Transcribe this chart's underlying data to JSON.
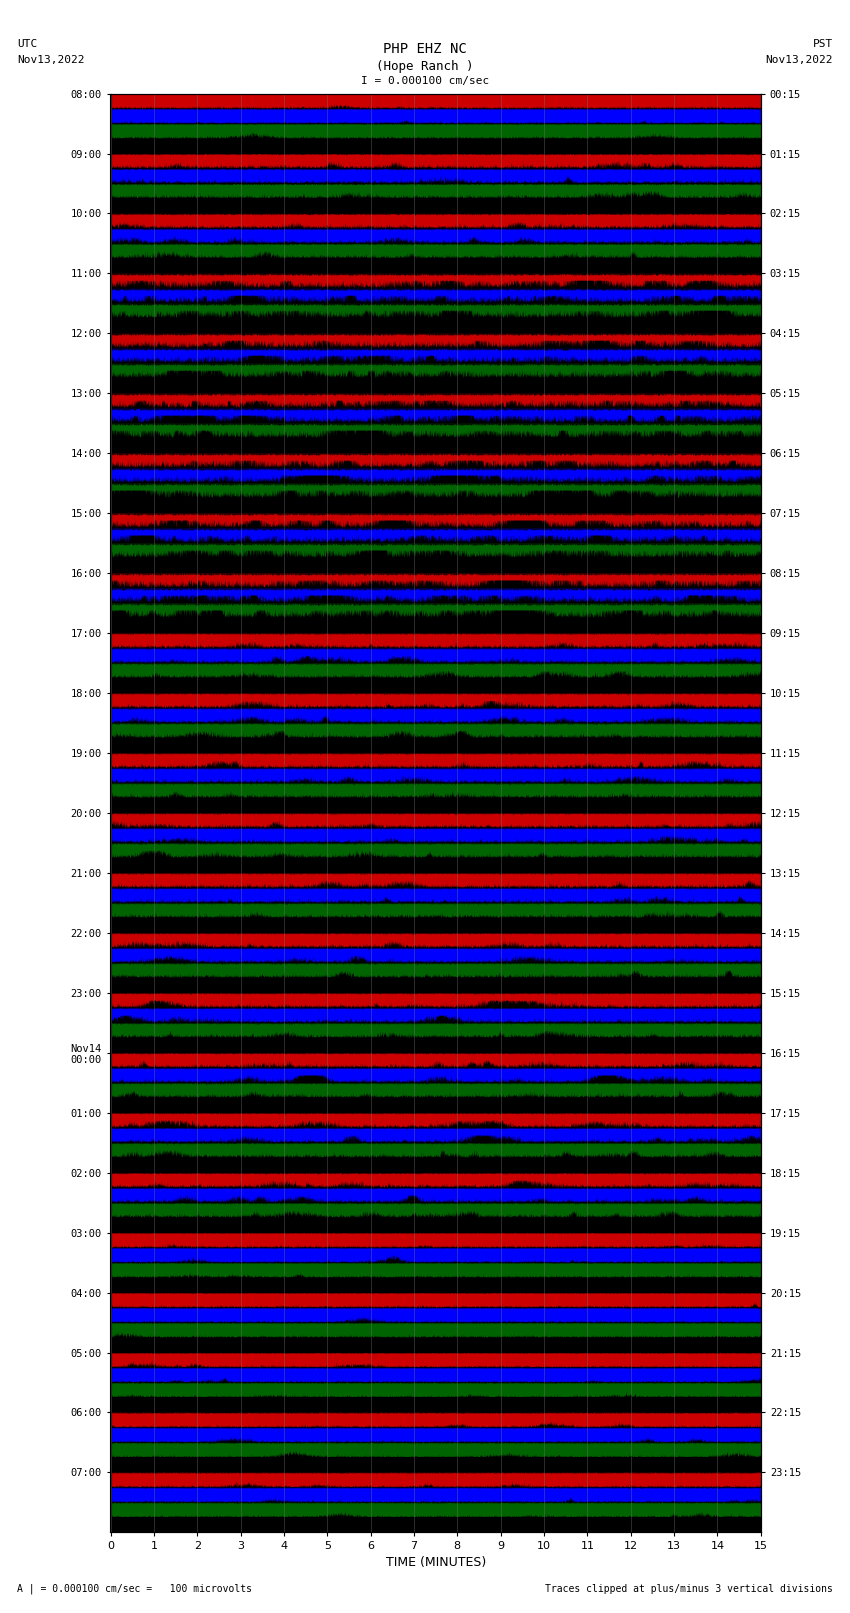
{
  "title_line1": "PHP EHZ NC",
  "title_line2": "(Hope Ranch )",
  "title_line3": "I = 0.000100 cm/sec",
  "top_left_line1": "UTC",
  "top_left_line2": "Nov13,2022",
  "top_right_line1": "PST",
  "top_right_line2": "Nov13,2022",
  "bottom_left": "A | = 0.000100 cm/sec =   100 microvolts",
  "bottom_right": "Traces clipped at plus/minus 3 vertical divisions",
  "xlabel": "TIME (MINUTES)",
  "left_times_utc": [
    "08:00",
    "09:00",
    "10:00",
    "11:00",
    "12:00",
    "13:00",
    "14:00",
    "15:00",
    "16:00",
    "17:00",
    "18:00",
    "19:00",
    "20:00",
    "21:00",
    "22:00",
    "23:00",
    "Nov14\n00:00",
    "01:00",
    "02:00",
    "03:00",
    "04:00",
    "05:00",
    "06:00",
    "07:00"
  ],
  "right_times_pst": [
    "00:15",
    "01:15",
    "02:15",
    "03:15",
    "04:15",
    "05:15",
    "06:15",
    "07:15",
    "08:15",
    "09:15",
    "10:15",
    "11:15",
    "12:15",
    "13:15",
    "14:15",
    "15:15",
    "16:15",
    "17:15",
    "18:15",
    "19:15",
    "20:15",
    "21:15",
    "22:15",
    "23:15"
  ],
  "n_rows": 24,
  "x_max": 15,
  "fig_bg": "#ffffff",
  "noise_seed": 42,
  "dpi": 100,
  "fig_width": 8.5,
  "fig_height": 16.13
}
